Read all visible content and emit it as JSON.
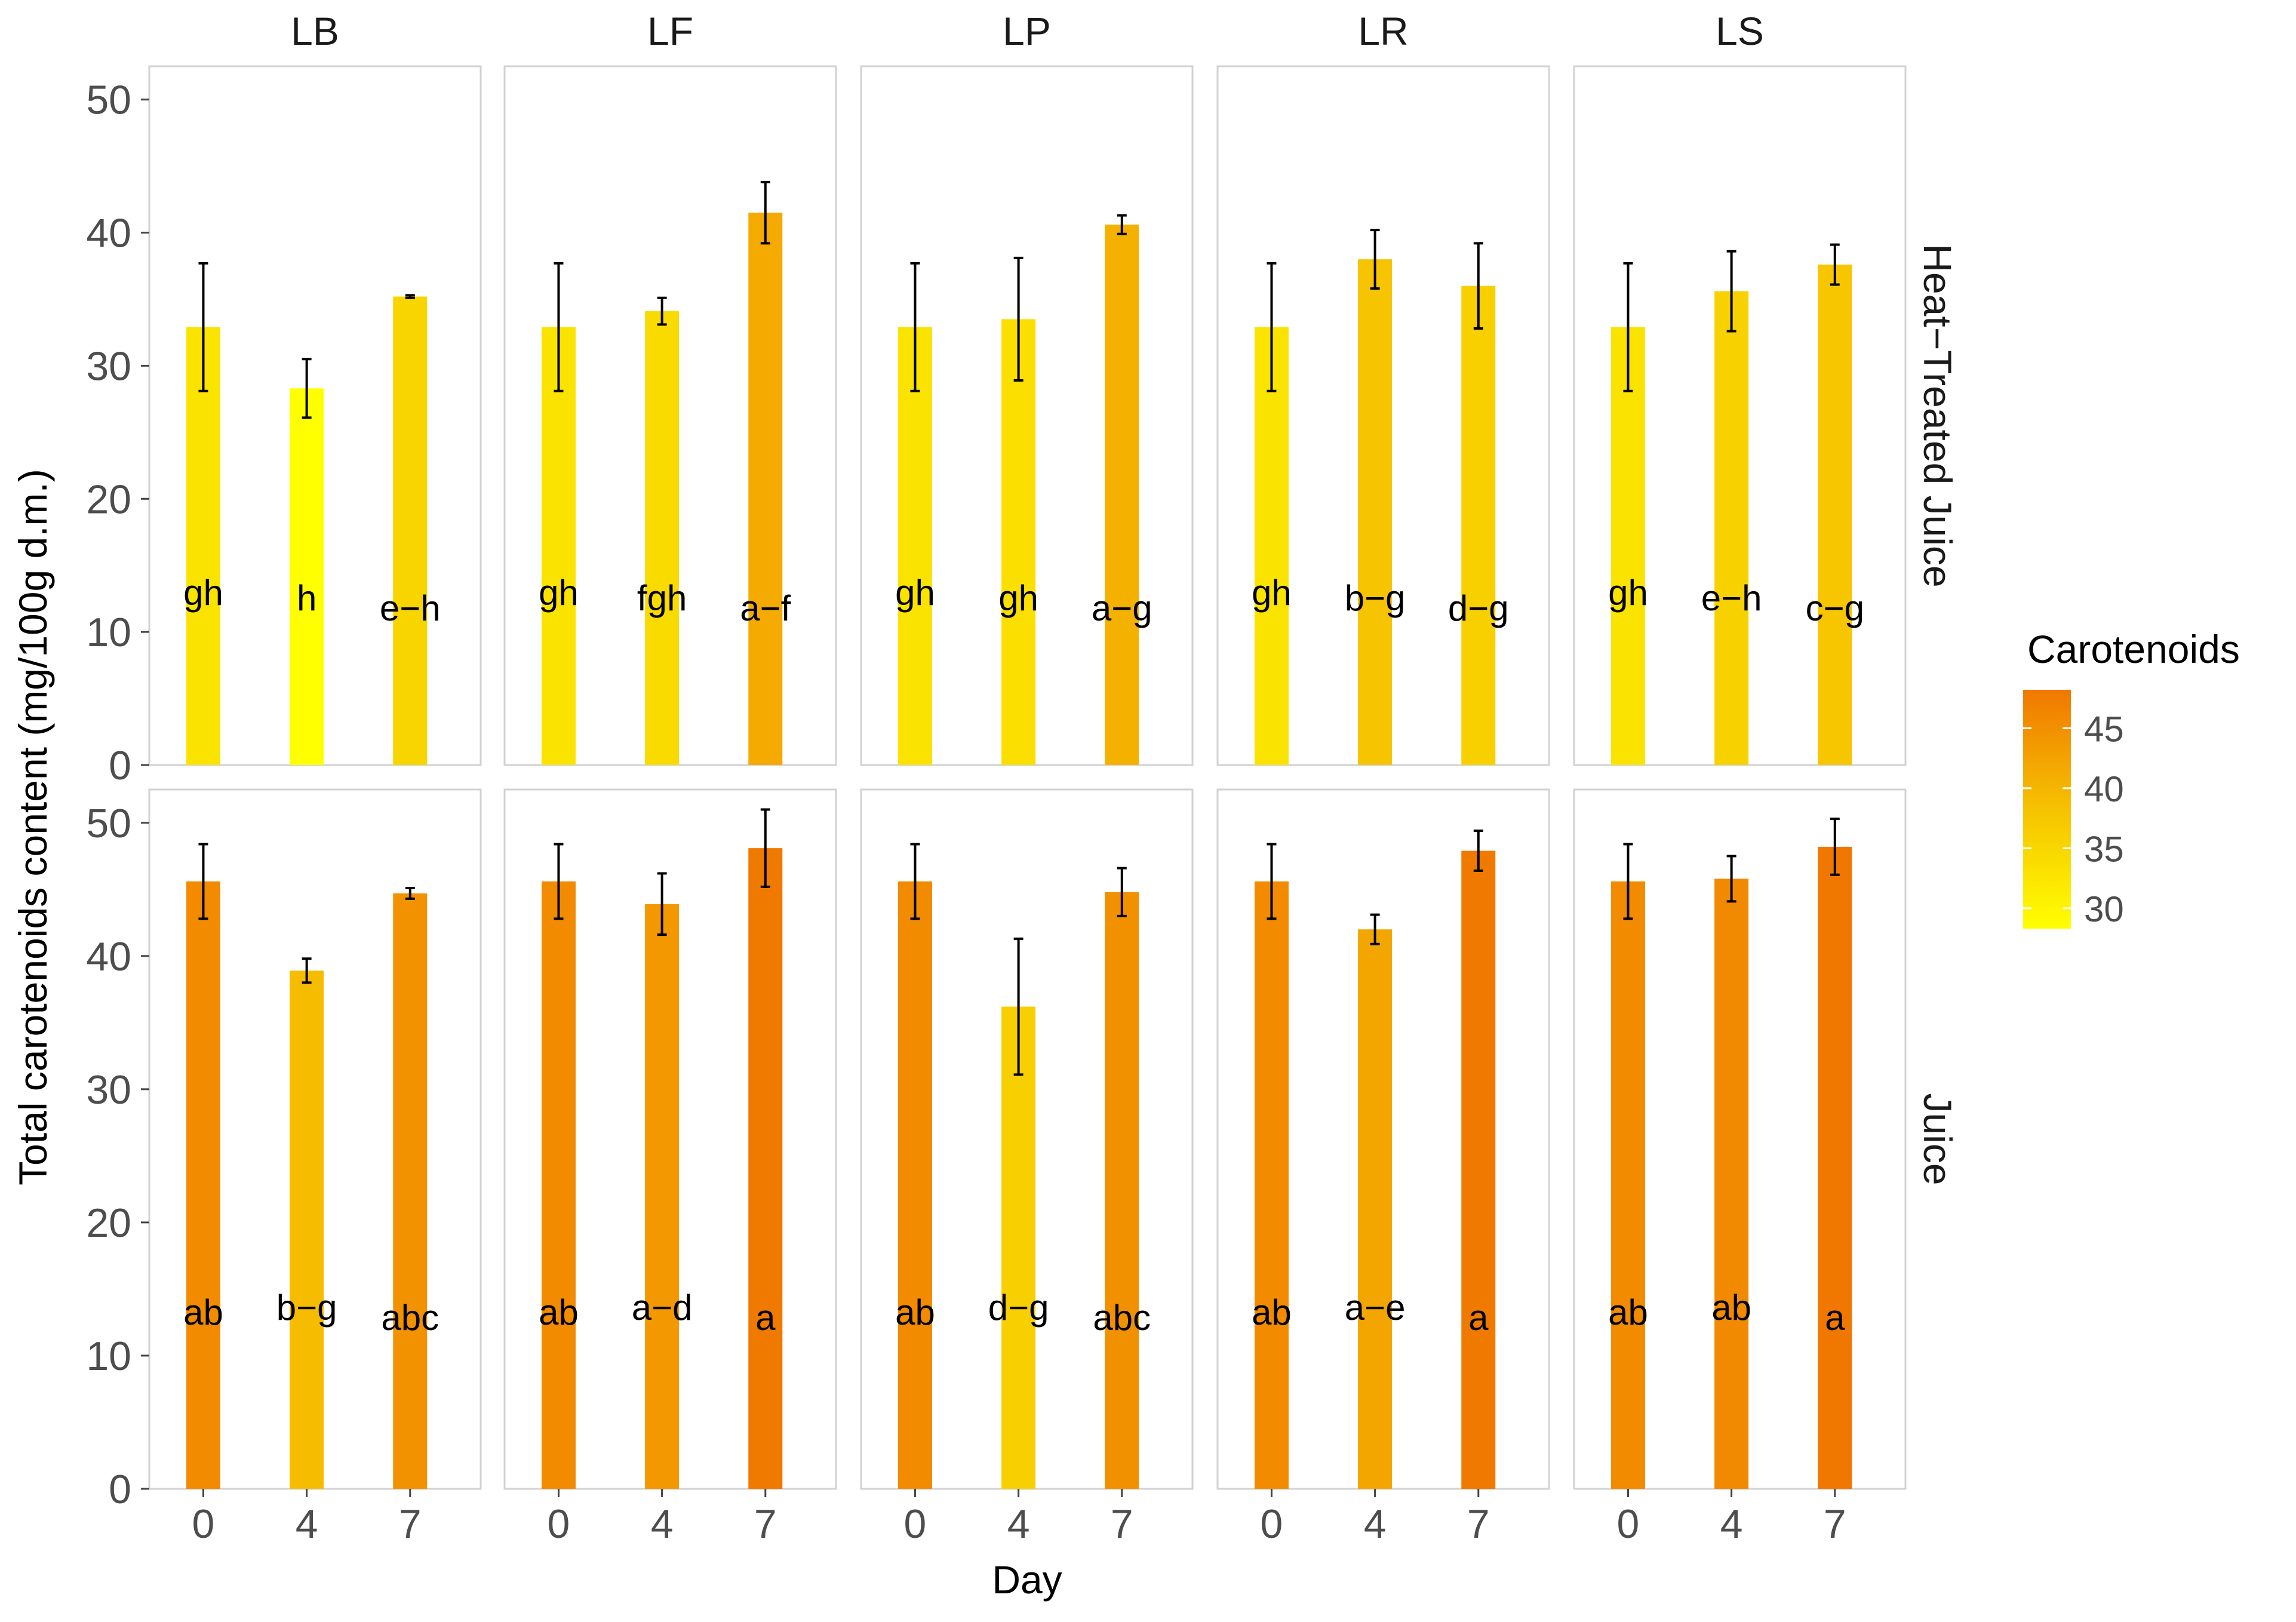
{
  "chart_data": {
    "type": "bar",
    "facet_columns": [
      "LB",
      "LF",
      "LP",
      "LR",
      "LS"
    ],
    "facet_rows": [
      "Heat−Treated Juice",
      "Juice"
    ],
    "categories": [
      "0",
      "4",
      "7"
    ],
    "xlabel": "Day",
    "ylabel": "Total carotenoids content (mg/100g d.m.)",
    "ylim": [
      0,
      52.5
    ],
    "yticks": [
      0,
      10,
      20,
      30,
      40,
      50
    ],
    "grid": false,
    "legend": {
      "title": "Carotenoids",
      "position": "right",
      "ticks": [
        30,
        35,
        40,
        45
      ],
      "range": [
        28.3,
        48.2
      ],
      "colors": {
        "low": "#ffff00",
        "mid": "#f6c200",
        "high": "#f07800"
      }
    },
    "panels": [
      {
        "row": "Heat−Treated Juice",
        "col": "LB",
        "values": [
          32.9,
          28.3,
          35.2
        ],
        "errors": [
          4.8,
          2.2,
          0.1
        ],
        "letters": [
          "gh",
          "h",
          "e−h"
        ]
      },
      {
        "row": "Heat−Treated Juice",
        "col": "LF",
        "values": [
          32.9,
          34.1,
          41.5
        ],
        "errors": [
          4.8,
          1.0,
          2.3
        ],
        "letters": [
          "gh",
          "fgh",
          "a−f"
        ]
      },
      {
        "row": "Heat−Treated Juice",
        "col": "LP",
        "values": [
          32.9,
          33.5,
          40.6
        ],
        "errors": [
          4.8,
          4.6,
          0.7
        ],
        "letters": [
          "gh",
          "gh",
          "a−g"
        ]
      },
      {
        "row": "Heat−Treated Juice",
        "col": "LR",
        "values": [
          32.9,
          38.0,
          36.0
        ],
        "errors": [
          4.8,
          2.2,
          3.2
        ],
        "letters": [
          "gh",
          "b−g",
          "d−g"
        ]
      },
      {
        "row": "Heat−Treated Juice",
        "col": "LS",
        "values": [
          32.9,
          35.6,
          37.6
        ],
        "errors": [
          4.8,
          3.0,
          1.5
        ],
        "letters": [
          "gh",
          "e−h",
          "c−g"
        ]
      },
      {
        "row": "Juice",
        "col": "LB",
        "values": [
          45.6,
          38.9,
          44.7
        ],
        "errors": [
          2.8,
          0.9,
          0.4
        ],
        "letters": [
          "ab",
          "b−g",
          "abc"
        ]
      },
      {
        "row": "Juice",
        "col": "LF",
        "values": [
          45.6,
          43.9,
          48.1
        ],
        "errors": [
          2.8,
          2.3,
          2.9
        ],
        "letters": [
          "ab",
          "a−d",
          "a"
        ]
      },
      {
        "row": "Juice",
        "col": "LP",
        "values": [
          45.6,
          36.2,
          44.8
        ],
        "errors": [
          2.8,
          5.1,
          1.8
        ],
        "letters": [
          "ab",
          "d−g",
          "abc"
        ]
      },
      {
        "row": "Juice",
        "col": "LR",
        "values": [
          45.6,
          42.0,
          47.9
        ],
        "errors": [
          2.8,
          1.1,
          1.5
        ],
        "letters": [
          "ab",
          "a−e",
          "a"
        ]
      },
      {
        "row": "Juice",
        "col": "LS",
        "values": [
          45.6,
          45.8,
          48.2
        ],
        "errors": [
          2.8,
          1.7,
          2.1
        ],
        "letters": [
          "ab",
          "ab",
          "a"
        ]
      }
    ]
  }
}
